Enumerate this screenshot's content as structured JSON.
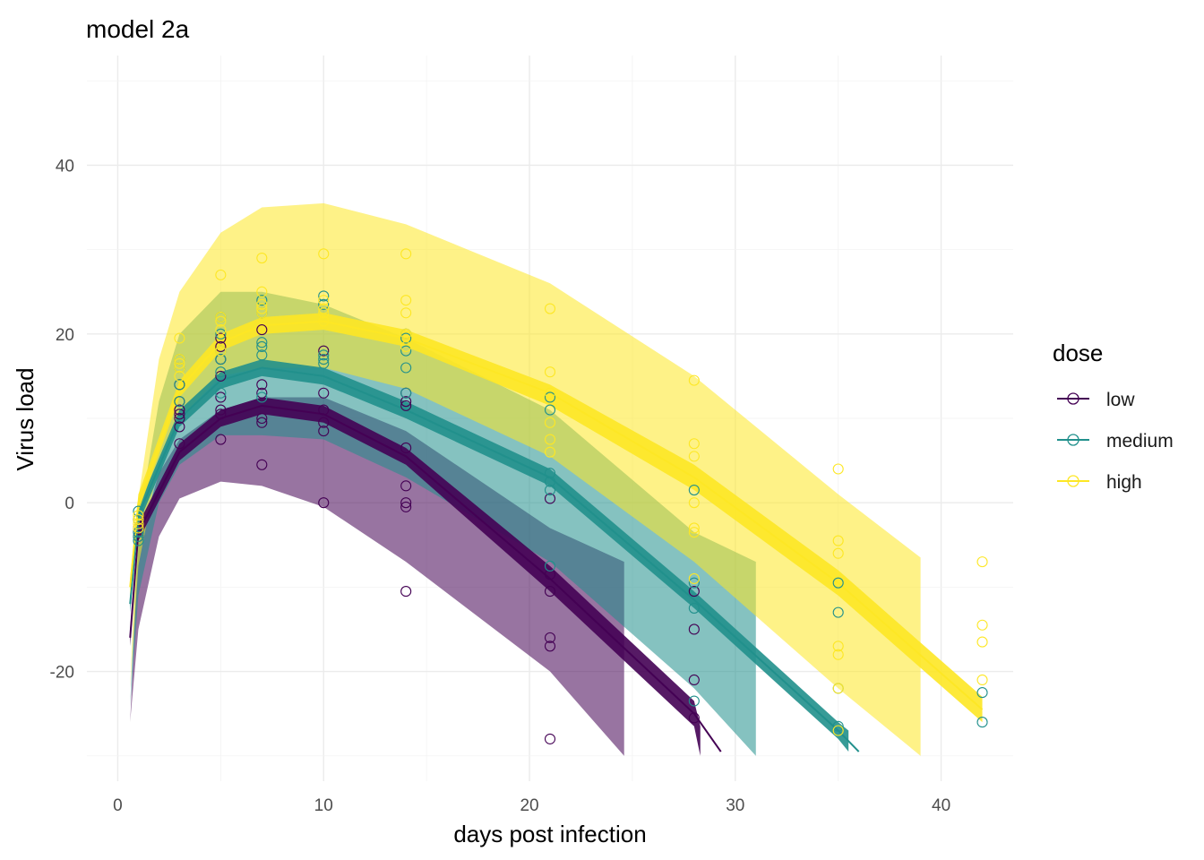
{
  "chart_data": {
    "type": "scatter",
    "title": "model 2a",
    "xlabel": "days post infection",
    "ylabel": "Virus load",
    "xlim": [
      -1.5,
      43.5
    ],
    "ylim": [
      -33,
      53
    ],
    "xticks": [
      0,
      10,
      20,
      30,
      40
    ],
    "yticks": [
      -20,
      0,
      20,
      40
    ],
    "grid": true,
    "legend": {
      "title": "dose",
      "placement": "right",
      "entries": [
        "low",
        "medium",
        "high"
      ]
    },
    "colors": {
      "low": "#440154",
      "medium": "#21908C",
      "high": "#FDE725"
    },
    "series": [
      {
        "name": "low",
        "points": [
          [
            1,
            -2
          ],
          [
            1,
            -3
          ],
          [
            1,
            -3.5
          ],
          [
            1,
            -4
          ],
          [
            3,
            14
          ],
          [
            3,
            12
          ],
          [
            3,
            11
          ],
          [
            3,
            10.5
          ],
          [
            3,
            10
          ],
          [
            3,
            9
          ],
          [
            3,
            7
          ],
          [
            5,
            19.5
          ],
          [
            5,
            18.5
          ],
          [
            5,
            17
          ],
          [
            5,
            15
          ],
          [
            5,
            12.5
          ],
          [
            5,
            11
          ],
          [
            5,
            10.5
          ],
          [
            5,
            7.5
          ],
          [
            7,
            20.5
          ],
          [
            7,
            14
          ],
          [
            7,
            13
          ],
          [
            7,
            10
          ],
          [
            7,
            9.5
          ],
          [
            7,
            4.5
          ],
          [
            10,
            18
          ],
          [
            10,
            13
          ],
          [
            10,
            11
          ],
          [
            10,
            9.5
          ],
          [
            10,
            8.5
          ],
          [
            10,
            0
          ],
          [
            14,
            13
          ],
          [
            14,
            12
          ],
          [
            14,
            11.5
          ],
          [
            14,
            6.5
          ],
          [
            14,
            2
          ],
          [
            14,
            0
          ],
          [
            14,
            -0.5
          ],
          [
            14,
            -10.5
          ],
          [
            21,
            0.5
          ],
          [
            21,
            -8.5
          ],
          [
            21,
            -10.5
          ],
          [
            21,
            -16
          ],
          [
            21,
            -17
          ],
          [
            21,
            -28
          ],
          [
            28,
            -10.5
          ],
          [
            28,
            -15
          ],
          [
            28,
            -21
          ],
          [
            28,
            -25.5
          ]
        ],
        "fit": {
          "t": [
            0.6,
            1,
            3,
            5,
            7,
            10,
            14,
            21,
            28,
            29.3
          ],
          "mean": [
            -16,
            -3.5,
            6,
            10,
            11.5,
            10.5,
            5.5,
            -9,
            -25,
            -29.5
          ],
          "lower": [
            -16,
            -3.5,
            6,
            10,
            11.5,
            10.5,
            5.5,
            -9,
            -25,
            -29.5
          ],
          "upper": [
            -16,
            -3.5,
            6,
            10,
            11.5,
            10.5,
            5.5,
            -9,
            -25,
            -29.5
          ]
        },
        "band": {
          "t": [
            0.6,
            1,
            2,
            3,
            5,
            7,
            10,
            14,
            21,
            24.6
          ],
          "lower": [
            -26,
            -15,
            -4,
            0.5,
            2.5,
            2,
            -0.5,
            -7,
            -20,
            -30
          ],
          "upper": [
            -26,
            -5,
            3.5,
            7.5,
            11,
            12.5,
            12.5,
            8.5,
            -3,
            -7
          ]
        },
        "fit_ribbon": {
          "t": [
            0.6,
            1,
            3,
            5,
            7,
            10,
            14,
            21,
            28,
            28.3
          ],
          "lower": [
            -17,
            -4.5,
            5,
            9,
            10.5,
            9.5,
            4.5,
            -10.5,
            -26.5,
            -30
          ],
          "upper": [
            -15,
            -2.5,
            7,
            11,
            12.5,
            11.5,
            6.5,
            -7.5,
            -23.5,
            -26.5
          ]
        }
      },
      {
        "name": "medium",
        "points": [
          [
            1,
            -1
          ],
          [
            1,
            -2
          ],
          [
            1,
            -3.5
          ],
          [
            1,
            -4
          ],
          [
            1,
            -4.5
          ],
          [
            3,
            17
          ],
          [
            3,
            16
          ],
          [
            3,
            14
          ],
          [
            3,
            12
          ],
          [
            5,
            22
          ],
          [
            5,
            20
          ],
          [
            5,
            18
          ],
          [
            5,
            17
          ],
          [
            5,
            15.5
          ],
          [
            5,
            13
          ],
          [
            7,
            24
          ],
          [
            7,
            22.5
          ],
          [
            7,
            19
          ],
          [
            7,
            18.5
          ],
          [
            7,
            17.5
          ],
          [
            7,
            12.5
          ],
          [
            10,
            24.5
          ],
          [
            10,
            23.5
          ],
          [
            10,
            17.5
          ],
          [
            10,
            17
          ],
          [
            10,
            16.5
          ],
          [
            14,
            20
          ],
          [
            14,
            19.5
          ],
          [
            14,
            18
          ],
          [
            14,
            16
          ],
          [
            14,
            13
          ],
          [
            21,
            12.5
          ],
          [
            21,
            11
          ],
          [
            21,
            3.5
          ],
          [
            21,
            2.5
          ],
          [
            21,
            1.5
          ],
          [
            21,
            -7.5
          ],
          [
            28,
            1.5
          ],
          [
            28,
            -9.5
          ],
          [
            28,
            -12.5
          ],
          [
            28,
            -23.5
          ],
          [
            35,
            -9.5
          ],
          [
            35,
            -13
          ],
          [
            35,
            -22
          ],
          [
            35,
            -26.5
          ],
          [
            42,
            -22.5
          ],
          [
            42,
            -26
          ]
        ],
        "fit": {
          "t": [
            0.6,
            1,
            3,
            5,
            7,
            10,
            14,
            21,
            28,
            35,
            36
          ],
          "mean": [
            -12,
            -1.5,
            10,
            14.5,
            16,
            15,
            11,
            3,
            -11.5,
            -27,
            -29.5
          ],
          "lower": [
            -12,
            -1.5,
            10,
            14.5,
            16,
            15,
            11,
            3,
            -11.5,
            -27,
            -29.5
          ],
          "upper": [
            -12,
            -1.5,
            10,
            14.5,
            16,
            15,
            11,
            3,
            -11.5,
            -27,
            -29.5
          ]
        },
        "band": {
          "t": [
            0.6,
            1,
            2,
            3,
            5,
            7,
            10,
            14,
            21,
            28,
            31
          ],
          "lower": [
            -24,
            -11,
            0,
            4.5,
            8,
            8,
            7.5,
            3,
            -7,
            -22,
            -30
          ],
          "upper": [
            -24,
            -2.5,
            12,
            20,
            25,
            25,
            23.5,
            19.5,
            11,
            -3.5,
            -7
          ]
        },
        "fit_ribbon": {
          "t": [
            0.6,
            1,
            3,
            5,
            7,
            10,
            14,
            21,
            28,
            35,
            35.5
          ],
          "lower": [
            -13,
            -2.5,
            9,
            13.5,
            15,
            14,
            10,
            2,
            -12.5,
            -28,
            -29.5
          ],
          "upper": [
            -11,
            -0.5,
            11,
            15.5,
            17,
            16,
            12,
            4,
            -10.5,
            -26,
            -27
          ]
        }
      },
      {
        "name": "high",
        "points": [
          [
            1,
            -1.5
          ],
          [
            1,
            -2
          ],
          [
            1,
            -2.5
          ],
          [
            1,
            -3
          ],
          [
            3,
            19.5
          ],
          [
            3,
            17
          ],
          [
            3,
            16.5
          ],
          [
            3,
            16
          ],
          [
            3,
            15
          ],
          [
            5,
            27
          ],
          [
            5,
            22
          ],
          [
            5,
            21.5
          ],
          [
            5,
            20.5
          ],
          [
            5,
            18
          ],
          [
            7,
            29
          ],
          [
            7,
            25
          ],
          [
            7,
            23.5
          ],
          [
            7,
            23
          ],
          [
            7,
            22.5
          ],
          [
            10,
            29.5
          ],
          [
            10,
            24
          ],
          [
            10,
            23
          ],
          [
            10,
            22.5
          ],
          [
            10,
            21.5
          ],
          [
            14,
            29.5
          ],
          [
            14,
            24
          ],
          [
            14,
            22.5
          ],
          [
            14,
            20
          ],
          [
            14,
            18.5
          ],
          [
            21,
            23
          ],
          [
            21,
            15.5
          ],
          [
            21,
            13
          ],
          [
            21,
            9.5
          ],
          [
            21,
            7.5
          ],
          [
            21,
            6
          ],
          [
            28,
            14.5
          ],
          [
            28,
            7
          ],
          [
            28,
            5.5
          ],
          [
            28,
            0
          ],
          [
            28,
            -3
          ],
          [
            28,
            -3.5
          ],
          [
            28,
            -9
          ],
          [
            35,
            4
          ],
          [
            35,
            -4.5
          ],
          [
            35,
            -6
          ],
          [
            35,
            -17
          ],
          [
            35,
            -18
          ],
          [
            35,
            -22
          ],
          [
            35,
            -27
          ],
          [
            42,
            -7
          ],
          [
            42,
            -14.5
          ],
          [
            42,
            -16.5
          ],
          [
            42,
            -21
          ]
        ],
        "fit": {
          "t": [
            0.6,
            1,
            3,
            5,
            7,
            10,
            14,
            21,
            28,
            35,
            42
          ],
          "mean": [
            -10,
            0,
            13.5,
            19,
            21,
            21.5,
            19.5,
            13,
            3,
            -9.5,
            -24.5
          ],
          "lower": [
            -10,
            0,
            13.5,
            19,
            21,
            21.5,
            19.5,
            13,
            3,
            -9.5,
            -24.5
          ],
          "upper": [
            -10,
            0,
            13.5,
            19,
            21,
            21.5,
            19.5,
            13,
            3,
            -9.5,
            -24.5
          ]
        },
        "band": {
          "t": [
            0.6,
            1,
            2,
            3,
            5,
            7,
            10,
            14,
            21,
            28,
            35,
            39
          ],
          "lower": [
            -22,
            -7.5,
            5,
            10,
            15,
            16,
            16,
            13.5,
            5.5,
            -7,
            -22,
            -30
          ],
          "upper": [
            -22,
            0.5,
            17,
            25,
            32,
            35,
            35.5,
            33,
            26,
            15,
            1,
            -6.5
          ]
        },
        "fit_ribbon": {
          "t": [
            0.6,
            1,
            3,
            5,
            7,
            10,
            14,
            21,
            28,
            35,
            42
          ],
          "lower": [
            -11,
            -1,
            12.5,
            18,
            20,
            20.5,
            18.5,
            11.5,
            1.5,
            -11,
            -26
          ],
          "upper": [
            -9,
            1,
            14.5,
            20,
            22,
            22.5,
            20.5,
            14,
            4.5,
            -8,
            -23
          ]
        }
      }
    ]
  }
}
